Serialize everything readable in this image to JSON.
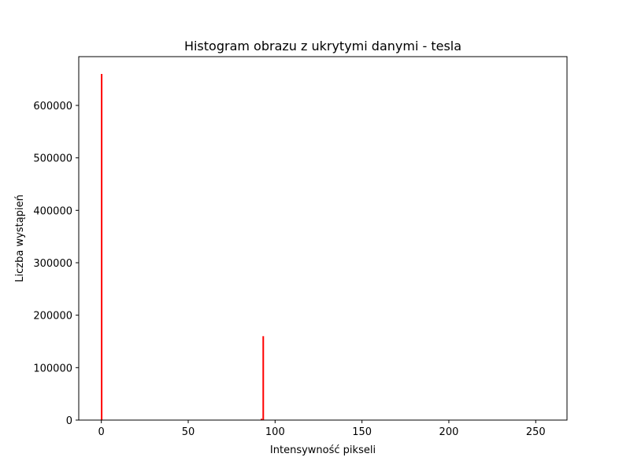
{
  "chart_data": {
    "type": "bar",
    "title": "Histogram obrazu z ukrytymi danymi - tesla",
    "xlabel": "Intensywność pikseli",
    "ylabel": "Liczba wystąpień",
    "xlim": [
      -13,
      268
    ],
    "ylim": [
      0,
      693000
    ],
    "x_ticks": [
      0,
      50,
      100,
      150,
      200,
      250
    ],
    "y_ticks": [
      0,
      100000,
      200000,
      300000,
      400000,
      500000,
      600000
    ],
    "grid": false,
    "bar_color": "#ff0000",
    "series": [
      {
        "x": [
          0,
          92,
          93
        ],
        "values": [
          660000,
          2500,
          160000
        ]
      }
    ]
  }
}
